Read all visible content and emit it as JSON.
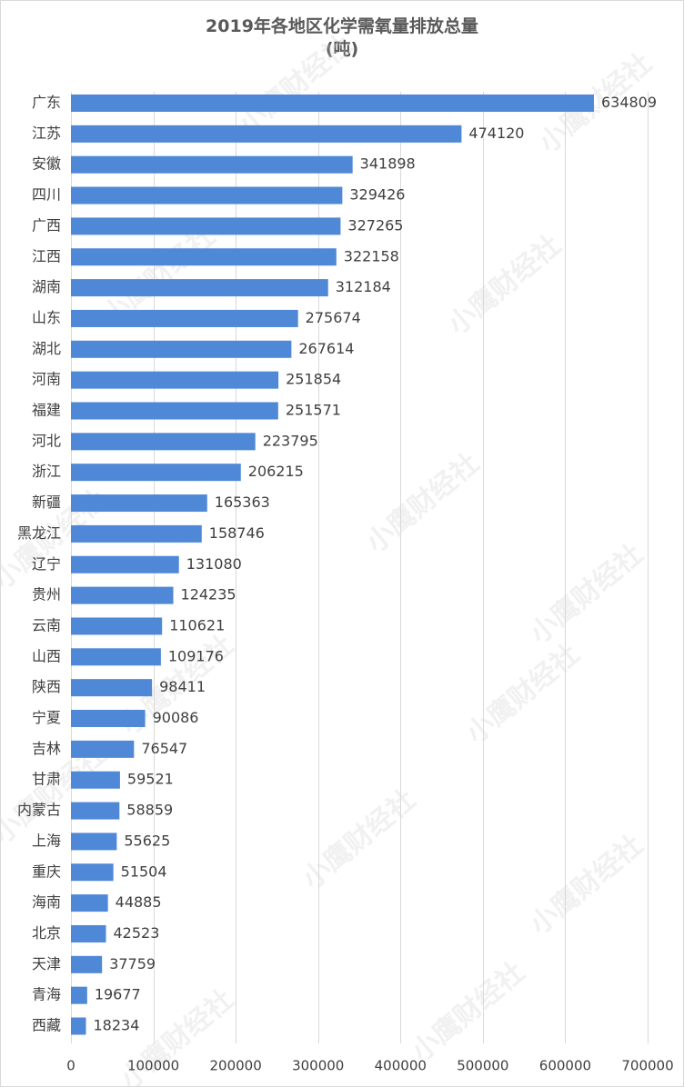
{
  "chart_data": {
    "type": "bar",
    "orientation": "horizontal",
    "title": "2019年各地区化学需氧量排放总量",
    "subtitle": "(吨)",
    "categories": [
      "广东",
      "江苏",
      "安徽",
      "四川",
      "广西",
      "江西",
      "湖南",
      "山东",
      "湖北",
      "河南",
      "福建",
      "河北",
      "浙江",
      "新疆",
      "黑龙江",
      "辽宁",
      "贵州",
      "云南",
      "山西",
      "陕西",
      "宁夏",
      "吉林",
      "甘肃",
      "内蒙古",
      "上海",
      "重庆",
      "海南",
      "北京",
      "天津",
      "青海",
      "西藏"
    ],
    "values": [
      634809,
      474120,
      341898,
      329426,
      327265,
      322158,
      312184,
      275674,
      267614,
      251854,
      251571,
      223795,
      206215,
      165363,
      158746,
      131080,
      124235,
      110621,
      109176,
      98411,
      90086,
      76547,
      59521,
      58859,
      55625,
      51504,
      44885,
      42523,
      37759,
      19677,
      18234
    ],
    "xlim": [
      0,
      700000
    ],
    "xticks": [
      0,
      100000,
      200000,
      300000,
      400000,
      500000,
      600000,
      700000
    ],
    "grid": true,
    "bar_color": "#4e88d6",
    "watermark": "小鹰财经社"
  }
}
